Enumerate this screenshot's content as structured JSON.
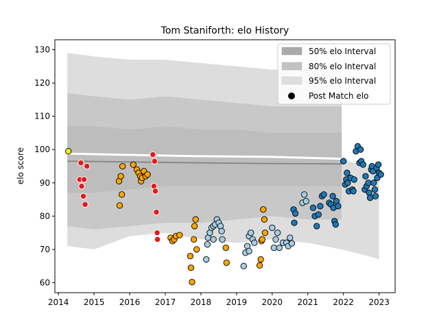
{
  "chart_data": {
    "type": "scatter",
    "title": "Tom Staniforth: elo History",
    "ylabel": "elo score",
    "xlabel": "",
    "xlim": [
      2013.9,
      2023.45
    ],
    "ylim": [
      57,
      133
    ],
    "x_ticks": [
      2014,
      2015,
      2016,
      2017,
      2018,
      2019,
      2020,
      2021,
      2022,
      2023
    ],
    "y_ticks": [
      60,
      70,
      80,
      90,
      100,
      110,
      120,
      130
    ],
    "grid": false,
    "legend_position": "top-right",
    "legend": [
      {
        "label": "50% elo Interval",
        "kind": "patch",
        "color": "#aaaaaa"
      },
      {
        "label": "80% elo Interval",
        "kind": "patch",
        "color": "#c2c2c2"
      },
      {
        "label": "95% elo Interval",
        "kind": "patch",
        "color": "#dddddd"
      },
      {
        "label": "Post Match elo",
        "kind": "marker",
        "color": "#000000"
      }
    ],
    "intervals": {
      "x_range": [
        2014.25,
        2021.95
      ],
      "band_95": {
        "x": [
          2014.25,
          2015.0,
          2016.0,
          2017.0,
          2018.0,
          2019.0,
          2020.0,
          2021.0,
          2021.95
        ],
        "lower": [
          71,
          70,
          74,
          75,
          73,
          72,
          73,
          72,
          70
        ],
        "upper": [
          129,
          128,
          127,
          127,
          126,
          125,
          124,
          124,
          124
        ]
      },
      "band_80": {
        "x": [
          2014.25,
          2015.0,
          2016.0,
          2017.0,
          2018.0,
          2019.0,
          2020.0,
          2021.0,
          2021.95
        ],
        "lower": [
          77,
          76,
          77,
          78,
          78,
          79,
          80,
          79,
          79
        ],
        "upper": [
          117,
          116,
          115,
          116,
          115,
          114,
          113,
          113,
          113
        ]
      },
      "band_50": {
        "x": [
          2014.25,
          2015.0,
          2016.0,
          2017.0,
          2018.0,
          2019.0,
          2020.0,
          2021.0,
          2021.95
        ],
        "lower": [
          87,
          87,
          88,
          89,
          89,
          89,
          89,
          89,
          89
        ],
        "upper": [
          107,
          107,
          106,
          107,
          106,
          106,
          105,
          105,
          105
        ]
      },
      "tail_95": {
        "x": [
          2021.95,
          2022.3,
          2022.7,
          2023.0
        ],
        "lower": [
          70,
          69,
          68,
          67
        ],
        "upper": [
          97,
          96,
          95,
          95
        ]
      },
      "median": {
        "x": [
          2014.25,
          2016.0,
          2018.0,
          2020.0,
          2021.95
        ],
        "y": [
          96.5,
          96.3,
          96.0,
          95.8,
          95.7
        ]
      },
      "mean": {
        "x": [
          2014.25,
          2016.0,
          2018.0,
          2020.0,
          2022.0,
          2023.0
        ],
        "y": [
          98.8,
          98.4,
          98.0,
          97.8,
          97.2,
          96.5
        ]
      }
    },
    "series": [
      {
        "color": "#f2f21a",
        "points": [
          [
            2014.28,
            99.5
          ]
        ]
      },
      {
        "color": "#e31a1c",
        "points": [
          [
            2014.6,
            91
          ],
          [
            2014.63,
            96
          ],
          [
            2014.65,
            89
          ],
          [
            2014.7,
            86
          ],
          [
            2014.72,
            91
          ],
          [
            2014.75,
            83.5
          ],
          [
            2014.8,
            95
          ]
        ]
      },
      {
        "color": "#ffa500",
        "points": [
          [
            2015.7,
            90.5
          ],
          [
            2015.72,
            83.2
          ],
          [
            2015.75,
            92
          ],
          [
            2015.78,
            86.5
          ],
          [
            2015.8,
            95
          ],
          [
            2016.1,
            95.5
          ],
          [
            2016.2,
            94
          ],
          [
            2016.25,
            93
          ],
          [
            2016.3,
            92
          ],
          [
            2016.32,
            90.5
          ],
          [
            2016.35,
            91.5
          ],
          [
            2016.4,
            93.5
          ],
          [
            2016.45,
            92
          ],
          [
            2016.5,
            92.5
          ]
        ]
      },
      {
        "color": "#e31a1c",
        "points": [
          [
            2016.65,
            98.5
          ],
          [
            2016.7,
            96.5
          ],
          [
            2016.68,
            89
          ],
          [
            2016.72,
            87.5
          ],
          [
            2016.75,
            81.2
          ],
          [
            2016.77,
            75
          ],
          [
            2016.78,
            73
          ]
        ]
      },
      {
        "color": "#ffa500",
        "points": [
          [
            2017.15,
            73.5
          ],
          [
            2017.2,
            72.5
          ],
          [
            2017.25,
            73
          ],
          [
            2017.3,
            74
          ],
          [
            2017.4,
            74.3
          ],
          [
            2017.7,
            68
          ],
          [
            2017.72,
            64.5
          ],
          [
            2017.75,
            60.2
          ],
          [
            2017.8,
            73
          ],
          [
            2017.82,
            77
          ],
          [
            2017.85,
            79
          ],
          [
            2017.88,
            70
          ]
        ]
      },
      {
        "color": "#a6cee3",
        "points": [
          [
            2018.15,
            67
          ],
          [
            2018.18,
            71.5
          ],
          [
            2018.2,
            73.5
          ],
          [
            2018.25,
            75
          ],
          [
            2018.3,
            76.5
          ],
          [
            2018.35,
            77
          ],
          [
            2018.4,
            77.5
          ],
          [
            2018.45,
            79
          ],
          [
            2018.5,
            78
          ],
          [
            2018.55,
            77
          ],
          [
            2018.58,
            75.5
          ],
          [
            2018.6,
            73
          ],
          [
            2018.35,
            73
          ]
        ]
      },
      {
        "color": "#ffa500",
        "points": [
          [
            2018.7,
            70.5
          ],
          [
            2018.72,
            66
          ]
        ]
      },
      {
        "color": "#a6cee3",
        "points": [
          [
            2019.2,
            65
          ],
          [
            2019.25,
            69
          ],
          [
            2019.3,
            71
          ],
          [
            2019.35,
            74
          ],
          [
            2019.4,
            75
          ],
          [
            2019.45,
            73
          ],
          [
            2019.5,
            72
          ],
          [
            2019.35,
            69.5
          ]
        ]
      },
      {
        "color": "#ffa500",
        "points": [
          [
            2019.65,
            65.2
          ],
          [
            2019.68,
            67
          ],
          [
            2019.7,
            72.5
          ],
          [
            2019.72,
            73
          ],
          [
            2019.75,
            82
          ],
          [
            2019.78,
            79
          ],
          [
            2019.8,
            75
          ]
        ]
      },
      {
        "color": "#a6cee3",
        "points": [
          [
            2020.0,
            76.5
          ],
          [
            2020.05,
            70.5
          ],
          [
            2020.1,
            73
          ],
          [
            2020.15,
            75
          ],
          [
            2020.2,
            70.5
          ],
          [
            2020.3,
            72
          ],
          [
            2020.4,
            72
          ],
          [
            2020.45,
            71
          ],
          [
            2020.5,
            73.5
          ],
          [
            2020.55,
            71.8
          ]
        ]
      },
      {
        "color": "#1f78b4",
        "points": [
          [
            2020.6,
            82
          ],
          [
            2020.65,
            80.8
          ],
          [
            2020.62,
            78
          ]
        ]
      },
      {
        "color": "#a6cee3",
        "points": [
          [
            2020.85,
            84
          ],
          [
            2020.9,
            86.5
          ],
          [
            2020.95,
            84.5
          ]
        ]
      },
      {
        "color": "#1f78b4",
        "points": [
          [
            2021.15,
            82.5
          ],
          [
            2021.2,
            80
          ],
          [
            2021.25,
            77
          ],
          [
            2021.3,
            80.5
          ],
          [
            2021.35,
            83
          ],
          [
            2021.4,
            86
          ],
          [
            2021.45,
            86.5
          ]
        ]
      },
      {
        "color": "#1f78b4",
        "points": [
          [
            2021.6,
            84
          ],
          [
            2021.65,
            83.5
          ],
          [
            2021.7,
            86
          ],
          [
            2021.72,
            82.5
          ],
          [
            2021.75,
            78.5
          ],
          [
            2021.78,
            77.5
          ],
          [
            2021.8,
            84.5
          ],
          [
            2021.85,
            83
          ]
        ]
      },
      {
        "color": "#1f78b4",
        "points": [
          [
            2022.0,
            96.5
          ],
          [
            2022.05,
            89.5
          ],
          [
            2022.08,
            91
          ],
          [
            2022.1,
            93
          ],
          [
            2022.12,
            90
          ],
          [
            2022.15,
            87.5
          ],
          [
            2022.2,
            91.5
          ],
          [
            2022.25,
            88
          ],
          [
            2022.28,
            87.5
          ],
          [
            2022.3,
            91
          ],
          [
            2022.35,
            99.5
          ],
          [
            2022.4,
            101
          ],
          [
            2022.45,
            96
          ],
          [
            2022.48,
            100
          ],
          [
            2022.5,
            96.5
          ],
          [
            2022.55,
            95.5
          ],
          [
            2022.6,
            88
          ],
          [
            2022.62,
            92
          ],
          [
            2022.65,
            89
          ],
          [
            2022.7,
            90
          ],
          [
            2022.72,
            87
          ],
          [
            2022.75,
            85.5
          ],
          [
            2022.78,
            94
          ],
          [
            2022.8,
            95
          ],
          [
            2022.83,
            93.5
          ],
          [
            2022.85,
            90
          ],
          [
            2022.88,
            88
          ],
          [
            2022.9,
            86
          ],
          [
            2022.93,
            94.5
          ],
          [
            2022.95,
            91.5
          ],
          [
            2022.98,
            95.5
          ],
          [
            2023.0,
            93
          ],
          [
            2023.05,
            92.5
          ]
        ]
      }
    ]
  }
}
